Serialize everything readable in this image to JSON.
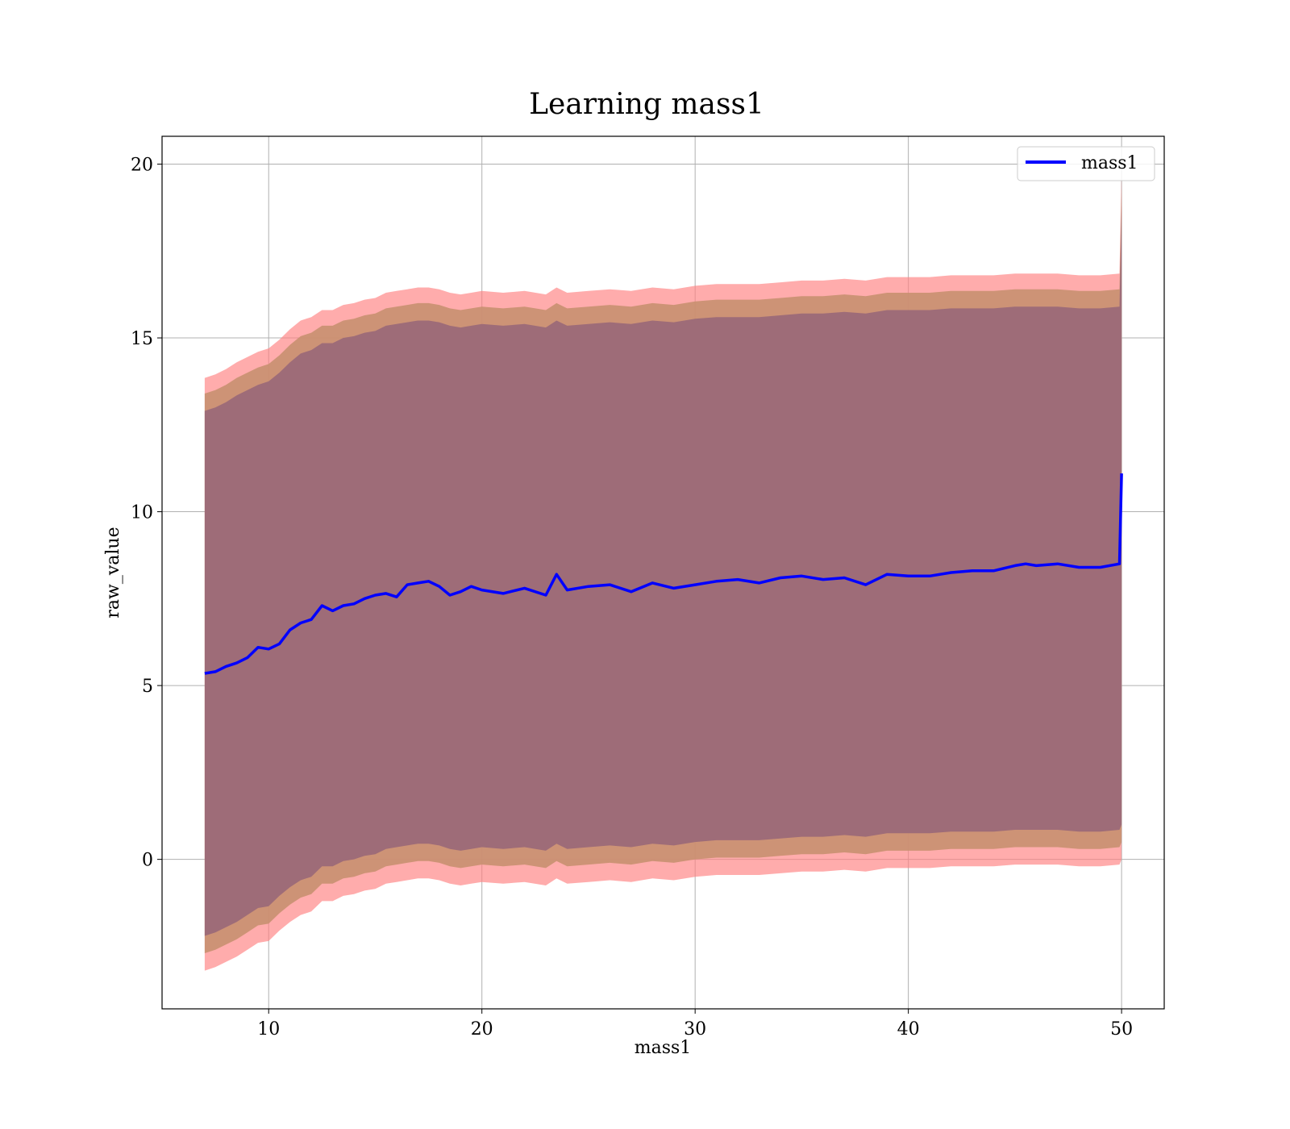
{
  "chart_data": {
    "type": "line",
    "title": "Learning mass1",
    "xlabel": "mass1",
    "ylabel": "raw_value",
    "xlim": [
      5,
      52
    ],
    "ylim": [
      -4.3,
      20.8
    ],
    "x_ticks": [
      10,
      20,
      30,
      40,
      50
    ],
    "y_ticks": [
      0,
      5,
      10,
      15,
      20
    ],
    "x_tick_labels": [
      "10",
      "20",
      "30",
      "40",
      "50"
    ],
    "y_tick_labels": [
      "0",
      "5",
      "10",
      "15",
      "20"
    ],
    "grid": true,
    "legend": {
      "position": "upper right",
      "entries": [
        "mass1"
      ]
    },
    "x": [
      7,
      7.5,
      8,
      8.5,
      9,
      9.5,
      10,
      10.5,
      11,
      11.5,
      12,
      12.5,
      13,
      13.5,
      14,
      14.5,
      15,
      15.5,
      16,
      16.5,
      17,
      17.5,
      18,
      18.5,
      19,
      19.5,
      20,
      21,
      22,
      23,
      23.5,
      24,
      25,
      26,
      27,
      28,
      29,
      30,
      31,
      32,
      33,
      34,
      35,
      36,
      37,
      38,
      39,
      40,
      41,
      42,
      43,
      44,
      45,
      45.5,
      46,
      47,
      48,
      49,
      49.9,
      50
    ],
    "series": [
      {
        "name": "mass1",
        "color": "#0000ff",
        "values": [
          5.35,
          5.4,
          5.55,
          5.65,
          5.8,
          6.1,
          6.05,
          6.2,
          6.6,
          6.8,
          6.9,
          7.3,
          7.15,
          7.3,
          7.35,
          7.5,
          7.6,
          7.65,
          7.55,
          7.9,
          7.95,
          8.0,
          7.85,
          7.6,
          7.7,
          7.85,
          7.75,
          7.65,
          7.8,
          7.6,
          8.2,
          7.75,
          7.85,
          7.9,
          7.7,
          7.95,
          7.8,
          7.9,
          8.0,
          8.05,
          7.95,
          8.1,
          8.15,
          8.05,
          8.1,
          7.9,
          8.2,
          8.15,
          8.15,
          8.25,
          8.3,
          8.3,
          8.45,
          8.5,
          8.45,
          8.5,
          8.4,
          8.4,
          8.5,
          11.1
        ]
      }
    ],
    "bands": [
      {
        "name": "band-outer",
        "color": "#ff8080",
        "opacity": 0.65,
        "lower": [
          -3.2,
          -3.1,
          -2.95,
          -2.8,
          -2.6,
          -2.4,
          -2.35,
          -2.05,
          -1.8,
          -1.6,
          -1.5,
          -1.2,
          -1.2,
          -1.05,
          -1.0,
          -0.9,
          -0.85,
          -0.7,
          -0.65,
          -0.6,
          -0.55,
          -0.55,
          -0.6,
          -0.7,
          -0.75,
          -0.7,
          -0.65,
          -0.7,
          -0.65,
          -0.75,
          -0.55,
          -0.7,
          -0.65,
          -0.6,
          -0.65,
          -0.55,
          -0.6,
          -0.5,
          -0.45,
          -0.45,
          -0.45,
          -0.4,
          -0.35,
          -0.35,
          -0.3,
          -0.35,
          -0.25,
          -0.25,
          -0.25,
          -0.2,
          -0.2,
          -0.2,
          -0.15,
          -0.15,
          -0.15,
          -0.15,
          -0.2,
          -0.2,
          -0.15,
          0.0
        ],
        "upper": [
          13.85,
          13.95,
          14.1,
          14.3,
          14.45,
          14.6,
          14.7,
          14.95,
          15.25,
          15.5,
          15.6,
          15.8,
          15.8,
          15.95,
          16.0,
          16.1,
          16.15,
          16.3,
          16.35,
          16.4,
          16.45,
          16.45,
          16.4,
          16.3,
          16.25,
          16.3,
          16.35,
          16.3,
          16.35,
          16.25,
          16.45,
          16.3,
          16.35,
          16.4,
          16.35,
          16.45,
          16.4,
          16.5,
          16.55,
          16.55,
          16.55,
          16.6,
          16.65,
          16.65,
          16.7,
          16.65,
          16.75,
          16.75,
          16.75,
          16.8,
          16.8,
          16.8,
          16.85,
          16.85,
          16.85,
          16.85,
          16.8,
          16.8,
          16.85,
          19.8
        ]
      },
      {
        "name": "band-middle",
        "color": "#c89070",
        "opacity": 0.9,
        "lower": [
          -2.7,
          -2.6,
          -2.45,
          -2.3,
          -2.1,
          -1.9,
          -1.85,
          -1.55,
          -1.3,
          -1.1,
          -1.0,
          -0.7,
          -0.7,
          -0.55,
          -0.5,
          -0.4,
          -0.35,
          -0.2,
          -0.15,
          -0.1,
          -0.05,
          -0.05,
          -0.1,
          -0.2,
          -0.25,
          -0.2,
          -0.15,
          -0.2,
          -0.15,
          -0.25,
          -0.05,
          -0.2,
          -0.15,
          -0.1,
          -0.15,
          -0.05,
          -0.1,
          0.0,
          0.05,
          0.05,
          0.05,
          0.1,
          0.15,
          0.15,
          0.2,
          0.15,
          0.25,
          0.25,
          0.25,
          0.3,
          0.3,
          0.3,
          0.35,
          0.35,
          0.35,
          0.35,
          0.3,
          0.3,
          0.35,
          0.5
        ],
        "upper": [
          13.4,
          13.5,
          13.65,
          13.85,
          14.0,
          14.15,
          14.25,
          14.5,
          14.8,
          15.05,
          15.15,
          15.35,
          15.35,
          15.5,
          15.55,
          15.65,
          15.7,
          15.85,
          15.9,
          15.95,
          16.0,
          16.0,
          15.95,
          15.85,
          15.8,
          15.85,
          15.9,
          15.85,
          15.9,
          15.8,
          16.0,
          15.85,
          15.9,
          15.95,
          15.9,
          16.0,
          15.95,
          16.05,
          16.1,
          16.1,
          16.1,
          16.15,
          16.2,
          16.2,
          16.25,
          16.2,
          16.3,
          16.3,
          16.3,
          16.35,
          16.35,
          16.35,
          16.4,
          16.4,
          16.4,
          16.4,
          16.35,
          16.35,
          16.4,
          19.3
        ]
      },
      {
        "name": "band-inner",
        "color": "#9e6c78",
        "opacity": 1.0,
        "lower": [
          -2.2,
          -2.1,
          -1.95,
          -1.8,
          -1.6,
          -1.4,
          -1.35,
          -1.05,
          -0.8,
          -0.6,
          -0.5,
          -0.2,
          -0.2,
          -0.05,
          0.0,
          0.1,
          0.15,
          0.3,
          0.35,
          0.4,
          0.45,
          0.45,
          0.4,
          0.3,
          0.25,
          0.3,
          0.35,
          0.3,
          0.35,
          0.25,
          0.45,
          0.3,
          0.35,
          0.4,
          0.35,
          0.45,
          0.4,
          0.5,
          0.55,
          0.55,
          0.55,
          0.6,
          0.65,
          0.65,
          0.7,
          0.65,
          0.75,
          0.75,
          0.75,
          0.8,
          0.8,
          0.8,
          0.85,
          0.85,
          0.85,
          0.85,
          0.8,
          0.8,
          0.85,
          1.0
        ],
        "upper": [
          12.9,
          13.0,
          13.15,
          13.35,
          13.5,
          13.65,
          13.75,
          14.0,
          14.3,
          14.55,
          14.65,
          14.85,
          14.85,
          15.0,
          15.05,
          15.15,
          15.2,
          15.35,
          15.4,
          15.45,
          15.5,
          15.5,
          15.45,
          15.35,
          15.3,
          15.35,
          15.4,
          15.35,
          15.4,
          15.3,
          15.5,
          15.35,
          15.4,
          15.45,
          15.4,
          15.5,
          15.45,
          15.55,
          15.6,
          15.6,
          15.6,
          15.65,
          15.7,
          15.7,
          15.75,
          15.7,
          15.8,
          15.8,
          15.8,
          15.85,
          15.85,
          15.85,
          15.9,
          15.9,
          15.9,
          15.9,
          15.85,
          15.85,
          15.9,
          18.8
        ]
      }
    ]
  }
}
